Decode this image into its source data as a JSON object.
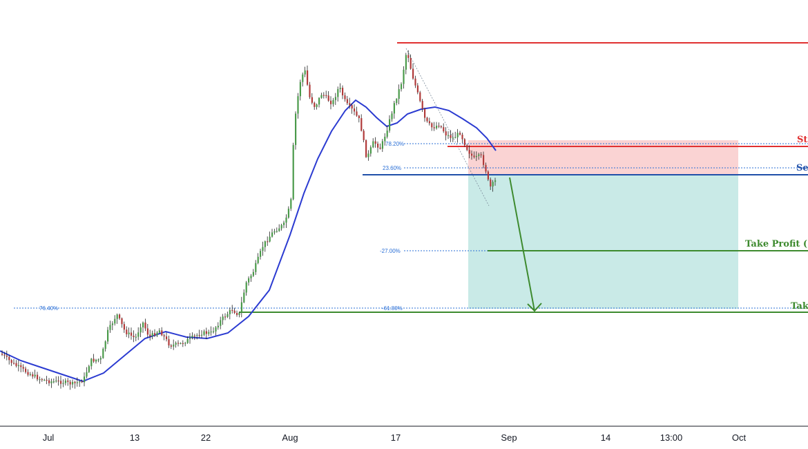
{
  "chart_data": {
    "type": "candlestick",
    "title": "",
    "x_tick_labels": [
      "Jul",
      "13",
      "22",
      "Aug",
      "17",
      "Sep",
      "14",
      "13:00",
      "Oct"
    ],
    "fib_labels": {
      "fib_78": "78.20%",
      "fib_236": "23.60%",
      "fib_ext_27": "-27.00%",
      "fib_ext_618": "-61.80%",
      "fib_764": "76.40%"
    },
    "level_labels": {
      "stop_loss": "St",
      "sell_entry": "Se",
      "take_profit_1": "Take Profit (",
      "take_profit_2": "Tak"
    },
    "colors": {
      "up": "#26a69a",
      "down": "#ef5350",
      "candle_body_up": "#4a9a4a",
      "candle_body_down": "#b03a3a",
      "moving_average": "#2b3bd1",
      "stop_line": "#e03030",
      "entry_line": "#1f4fa8",
      "target_line": "#3d8a2e",
      "fib_blue": "#2a6fd6",
      "stop_zone": "#f8c4c4",
      "target_zone": "#b7e3df",
      "arrow": "#3d8a2e",
      "axis": "#131722"
    }
  }
}
